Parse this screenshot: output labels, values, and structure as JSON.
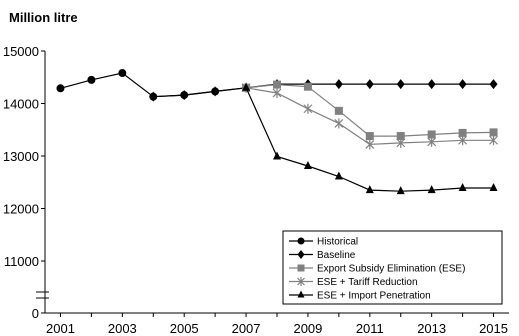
{
  "chart_data": {
    "type": "line",
    "title": "Million litre",
    "xlabel": "",
    "ylabel": "",
    "x_ticks": [
      "2001",
      "2003",
      "2005",
      "2007",
      "2009",
      "2011",
      "2013",
      "2015"
    ],
    "y_ticks": [
      "15000",
      "14000",
      "13000",
      "12000",
      "11000",
      "0"
    ],
    "ylim": [
      11000,
      15000
    ],
    "axis_break": true,
    "legend_position": "bottom-right",
    "series": [
      {
        "name": "Historical",
        "marker": "circle",
        "color": "#000000",
        "x": [
          2001,
          2002,
          2003,
          2004,
          2005,
          2006,
          2007
        ],
        "y": [
          14290,
          14450,
          14580,
          14130,
          14160,
          14230,
          14300
        ]
      },
      {
        "name": "Baseline",
        "marker": "diamond",
        "color": "#000000",
        "x": [
          2004,
          2005,
          2006,
          2007,
          2008,
          2009,
          2010,
          2011,
          2012,
          2013,
          2014,
          2015
        ],
        "y": [
          14130,
          14160,
          14230,
          14300,
          14370,
          14370,
          14370,
          14370,
          14370,
          14370,
          14370,
          14370
        ]
      },
      {
        "name": "Export Subsidy Elimination (ESE)",
        "marker": "square",
        "color": "#808080",
        "x": [
          2007,
          2008,
          2009,
          2010,
          2011,
          2012,
          2013,
          2014,
          2015
        ],
        "y": [
          14300,
          14360,
          14320,
          13860,
          13380,
          13380,
          13410,
          13440,
          13450
        ]
      },
      {
        "name": "ESE + Tariff Reduction",
        "marker": "star",
        "color": "#808080",
        "x": [
          2007,
          2008,
          2009,
          2010,
          2011,
          2012,
          2013,
          2014,
          2015
        ],
        "y": [
          14300,
          14200,
          13900,
          13620,
          13220,
          13250,
          13270,
          13300,
          13300
        ]
      },
      {
        "name": "ESE + Import Penetration",
        "marker": "triangle",
        "color": "#000000",
        "x": [
          2007,
          2008,
          2009,
          2010,
          2011,
          2012,
          2013,
          2014,
          2015
        ],
        "y": [
          14300,
          12990,
          12810,
          12610,
          12350,
          12330,
          12350,
          12390,
          12390
        ]
      }
    ]
  }
}
